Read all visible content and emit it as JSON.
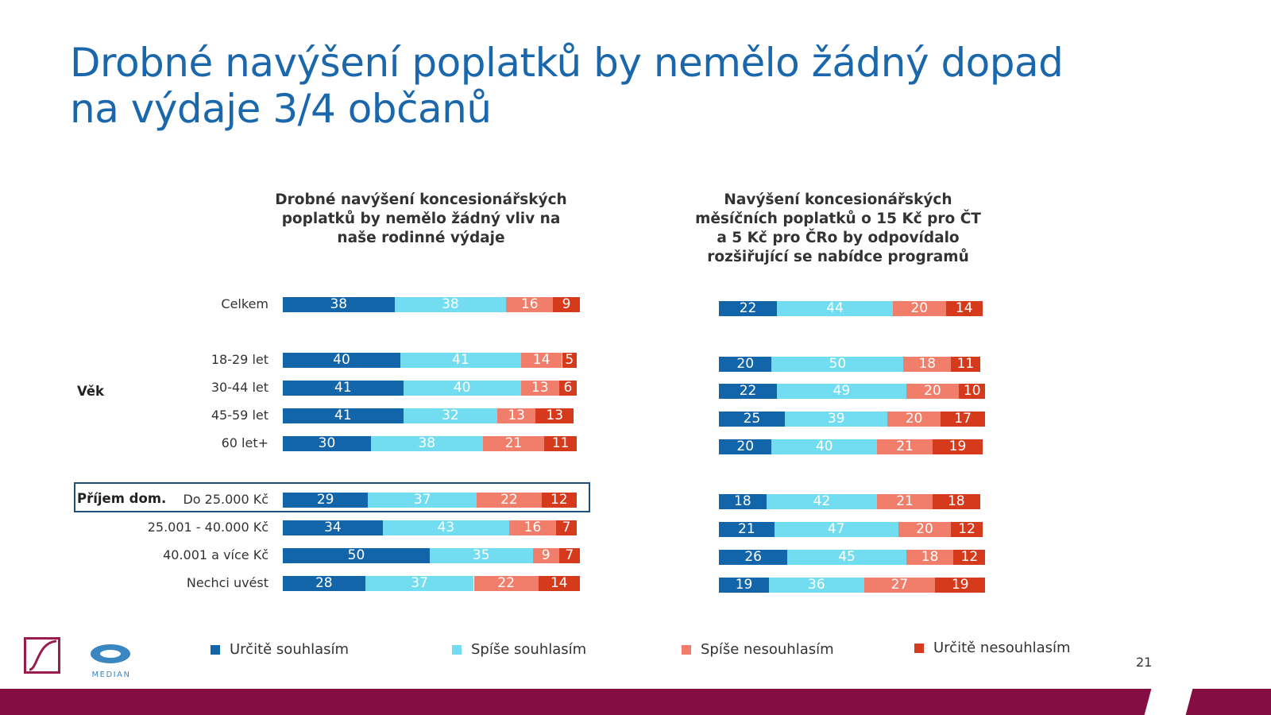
{
  "slide": {
    "title": "Drobné navýšení poplatků by nemělo žádný dopad na výdaje 3/4 občanů",
    "page_number": "21",
    "logos": [
      "Český rozhlas logo",
      "MEDIAN"
    ]
  },
  "colors": {
    "title": "#1a67ab",
    "footer": "#860d42"
  },
  "chart_data": [
    {
      "type": "bar",
      "orientation": "horizontal",
      "stacked": true,
      "title": "Drobné navýšení koncesionářských poplatků by nemělo žádný vliv na naše rodinné výdaje",
      "categories": [
        "Celkem",
        "18-29 let",
        "30-44 let",
        "45-59 let",
        "60 let+",
        "Do 25.000 Kč",
        "25.001 - 40.000 Kč",
        "40.001 a více Kč",
        "Nechci uvést"
      ],
      "groups": [
        {
          "label": "Věk",
          "categories": [
            "18-29 let",
            "30-44 let",
            "45-59 let",
            "60 let+"
          ]
        },
        {
          "label": "Příjem dom.",
          "categories": [
            "Do 25.000 Kč",
            "25.001 - 40.000 Kč",
            "40.001 a více Kč",
            "Nechci uvést"
          ]
        }
      ],
      "highlighted_category": "Do 25.000 Kč",
      "series": [
        {
          "name": "Určitě souhlasím",
          "color": "#1265a8",
          "values": [
            38,
            40,
            41,
            41,
            30,
            29,
            34,
            50,
            28
          ]
        },
        {
          "name": "Spíše souhlasím",
          "color": "#72dcf0",
          "values": [
            38,
            41,
            40,
            32,
            38,
            37,
            43,
            35,
            37
          ]
        },
        {
          "name": "Spíše nesouhlasím",
          "color": "#f07e6a",
          "values": [
            16,
            14,
            13,
            13,
            21,
            22,
            16,
            9,
            22
          ]
        },
        {
          "name": "Určitě nesouhlasím",
          "color": "#d63a1c",
          "values": [
            9,
            5,
            6,
            13,
            11,
            12,
            7,
            7,
            14
          ]
        }
      ],
      "data_labels": true,
      "legend": "bottom"
    },
    {
      "type": "bar",
      "orientation": "horizontal",
      "stacked": true,
      "title": "Navýšení koncesionářských měsíčních poplatků o 15 Kč pro ČT a 5 Kč pro ČRo by odpovídalo rozšiřující se nabídce programů",
      "categories": [
        "Celkem",
        "18-29 let",
        "30-44 let",
        "45-59 let",
        "60 let+",
        "Do 25.000 Kč",
        "25.001 - 40.000 Kč",
        "40.001 a více Kč",
        "Nechci uvést"
      ],
      "series": [
        {
          "name": "Určitě souhlasím",
          "color": "#1265a8",
          "values": [
            22,
            20,
            22,
            25,
            20,
            18,
            21,
            26,
            19
          ]
        },
        {
          "name": "Spíše souhlasím",
          "color": "#72dcf0",
          "values": [
            44,
            50,
            49,
            39,
            40,
            42,
            47,
            45,
            36
          ]
        },
        {
          "name": "Spíše nesouhlasím",
          "color": "#f07e6a",
          "values": [
            20,
            18,
            20,
            20,
            21,
            21,
            20,
            18,
            27
          ]
        },
        {
          "name": "Určitě nesouhlasím",
          "color": "#d63a1c",
          "values": [
            14,
            11,
            10,
            17,
            19,
            18,
            12,
            12,
            19
          ]
        }
      ],
      "data_labels": true,
      "legend": "bottom"
    }
  ]
}
